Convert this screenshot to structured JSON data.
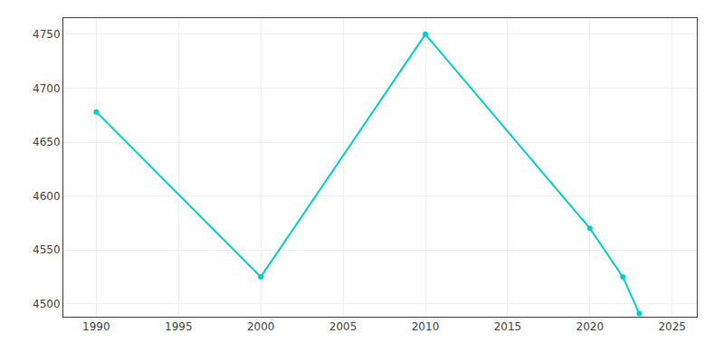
{
  "chart_data": {
    "type": "line",
    "x": [
      1990,
      2000,
      2010,
      2020,
      2022,
      2023
    ],
    "values": [
      4678,
      4525,
      4750,
      4570,
      4525,
      4491
    ],
    "color": "#00CED1",
    "marker": "circle",
    "xlim": [
      1988,
      2026.5
    ],
    "ylim": [
      4488,
      4765
    ],
    "xticks": [
      1990,
      1995,
      2000,
      2005,
      2010,
      2015,
      2020,
      2025
    ],
    "yticks": [
      4500,
      4550,
      4600,
      4650,
      4700,
      4750
    ],
    "grid": true
  }
}
